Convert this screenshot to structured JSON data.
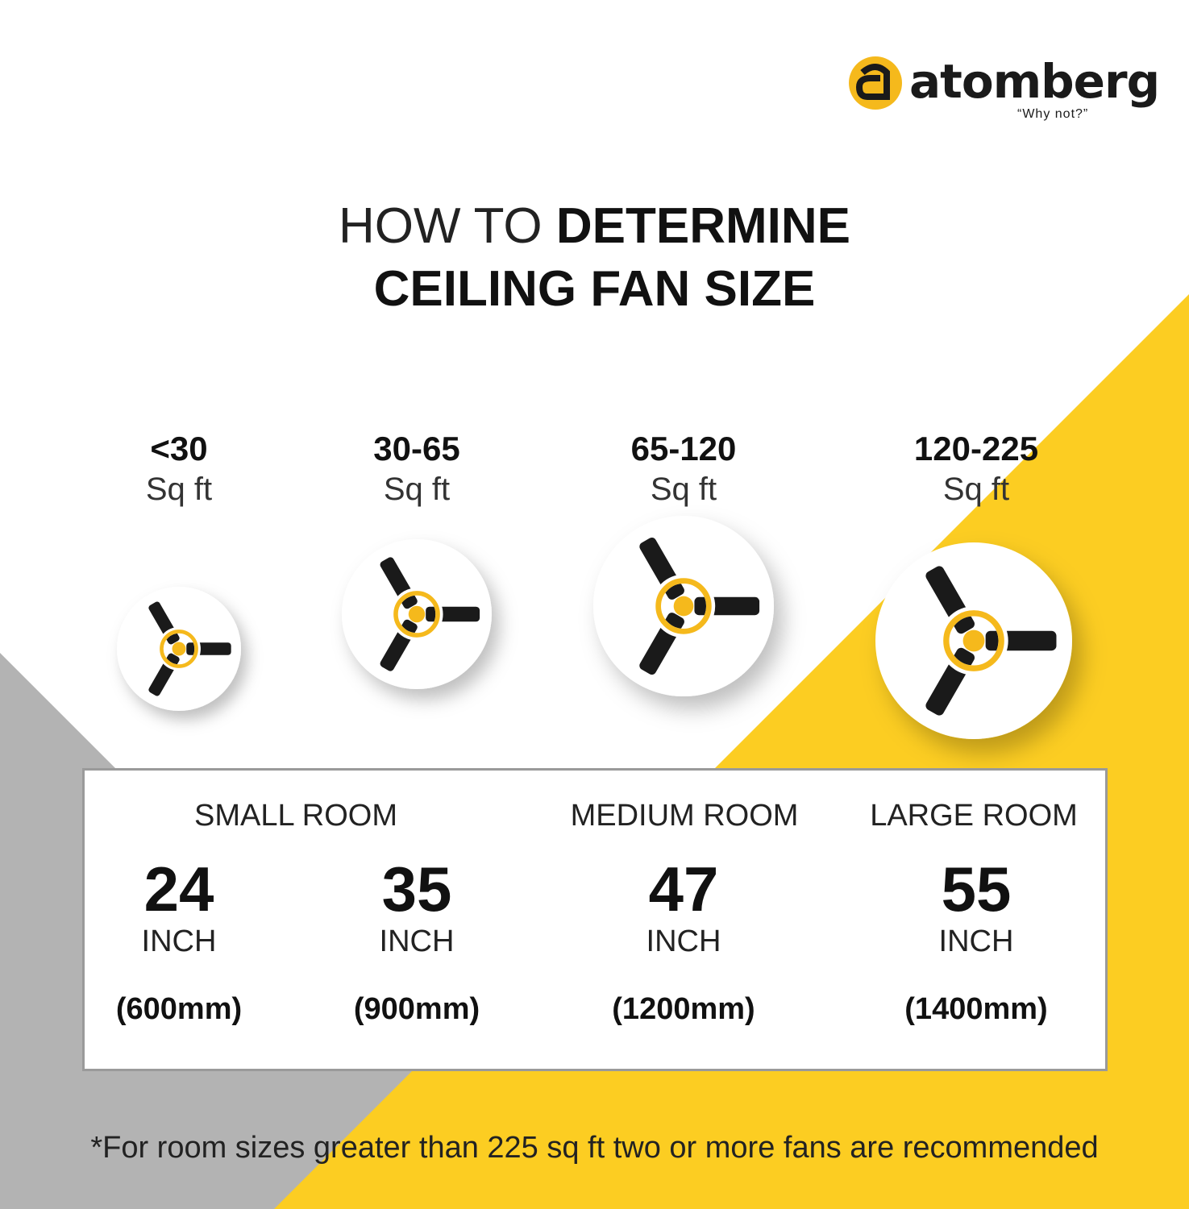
{
  "brand": {
    "name": "atomberg",
    "tagline": "“Why not?”",
    "color": "#F5B91C"
  },
  "colors": {
    "yellow": "#FCCD22",
    "gray": "#B3B3B3",
    "dark": "#1a1a1a",
    "border": "#9a9a9a"
  },
  "title": {
    "light": "HOW TO ",
    "bold1": "DETERMINE",
    "bold2": "CEILING FAN SIZE"
  },
  "areas": [
    {
      "num": "<30",
      "unit": "Sq ft"
    },
    {
      "num": "30-65",
      "unit": "Sq ft"
    },
    {
      "num": "65-120",
      "unit": "Sq ft"
    },
    {
      "num": "120-225",
      "unit": "Sq ft"
    }
  ],
  "rooms": {
    "small": "SMALL ROOM",
    "medium": "MEDIUM ROOM",
    "large": "LARGE ROOM"
  },
  "sizes": [
    {
      "n": "24",
      "i": "INCH",
      "mm": "(600mm)"
    },
    {
      "n": "35",
      "i": "INCH",
      "mm": "(900mm)"
    },
    {
      "n": "47",
      "i": "INCH",
      "mm": "(1200mm)"
    },
    {
      "n": "55",
      "i": "INCH",
      "mm": "(1400mm)"
    }
  ],
  "footnote": "*For room sizes greater than 225 sq ft two or more fans are recommended",
  "icons": [
    "fan-icon",
    "fan-icon",
    "fan-icon",
    "fan-icon"
  ]
}
